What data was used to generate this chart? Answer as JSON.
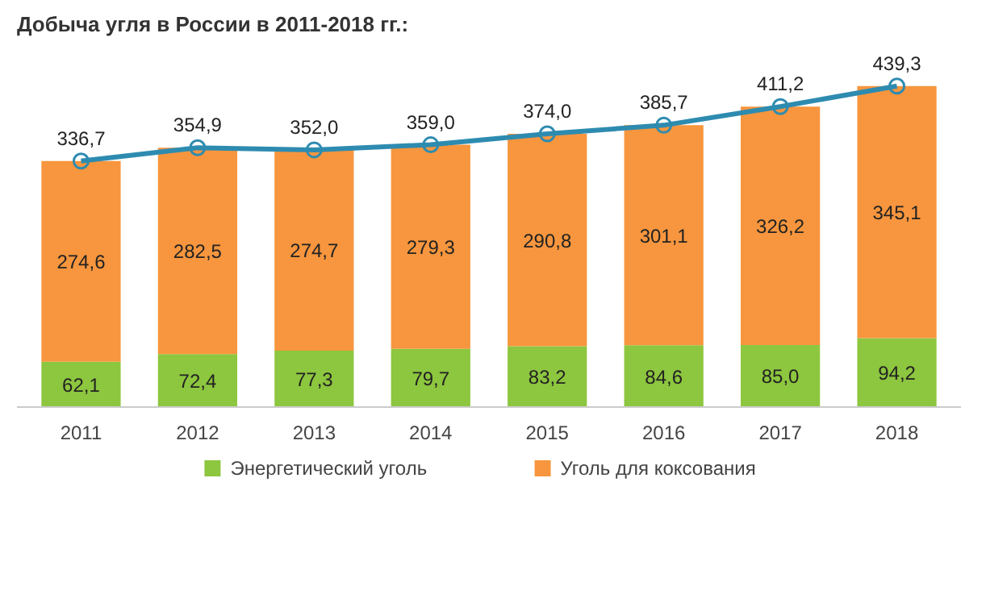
{
  "chart_data": {
    "type": "bar",
    "title": "Добыча угля в России в 2011-2018 гг.:",
    "stacked": true,
    "legend": "bottom",
    "marker": "circle",
    "line_style": "solid",
    "categories": [
      "2011",
      "2012",
      "2013",
      "2014",
      "2015",
      "2016",
      "2017",
      "2018"
    ],
    "series": [
      {
        "name": "Энергетический  уголь",
        "color": "#8dc63f",
        "values": [
          62.1,
          72.4,
          77.3,
          79.7,
          83.2,
          84.6,
          85.0,
          94.2
        ],
        "value_labels": [
          "62,1",
          "72,4",
          "77,3",
          "79,7",
          "83,2",
          "84,6",
          "85,0",
          "94,2"
        ]
      },
      {
        "name": "Уголь для коксования",
        "color": "#f7963e",
        "values": [
          274.6,
          282.5,
          274.7,
          279.3,
          290.8,
          301.1,
          326.2,
          345.1
        ],
        "value_labels": [
          "274,6",
          "282,5",
          "274,7",
          "279,3",
          "290,8",
          "301,1",
          "326,2",
          "345,1"
        ]
      },
      {
        "type": "line",
        "color": "#2e8bb0",
        "values": [
          336.7,
          354.9,
          352.0,
          359.0,
          374.0,
          385.7,
          411.2,
          439.3
        ],
        "value_labels": [
          "336,7",
          "354,9",
          "352,0",
          "359,0",
          "374,0",
          "385,7",
          "411,2",
          "439,3"
        ]
      }
    ]
  }
}
